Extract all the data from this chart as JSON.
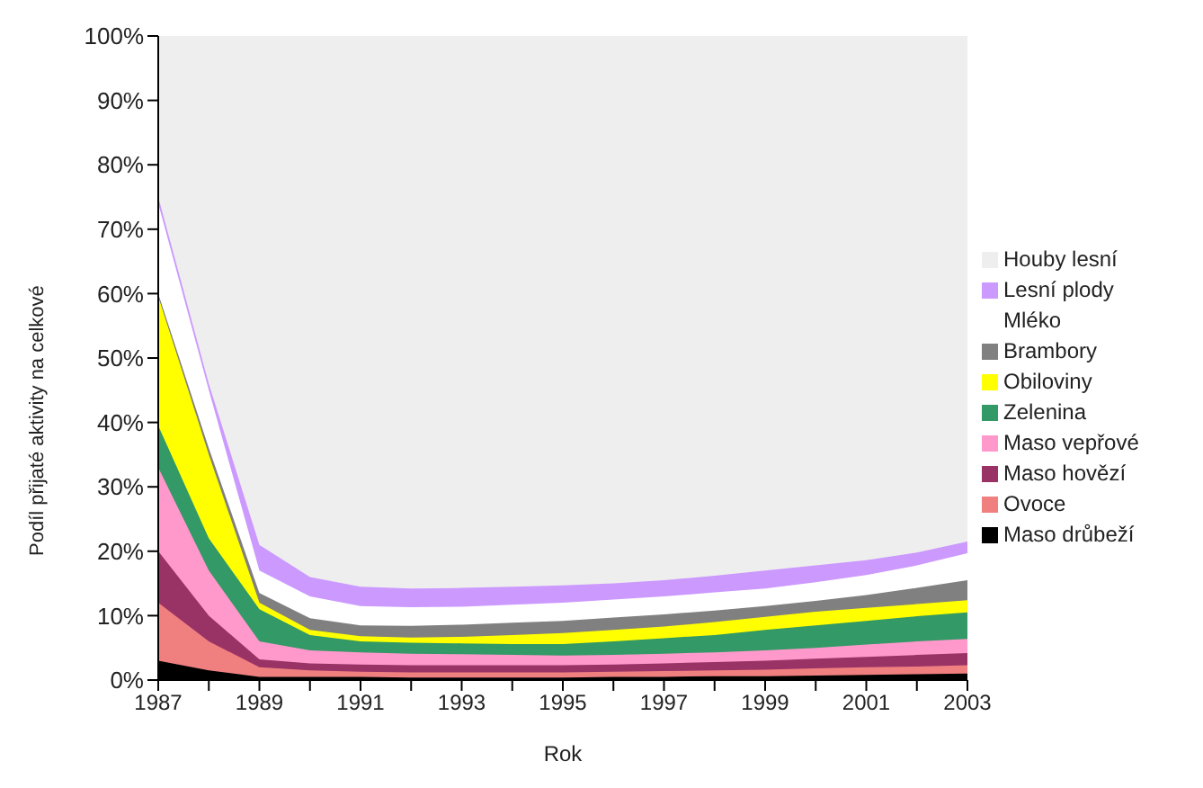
{
  "chart_data": {
    "type": "area",
    "stacked": true,
    "xlabel": "Rok",
    "ylabel": "Podíl přijaté aktivity na celkové",
    "x": [
      1987,
      1988,
      1989,
      1990,
      1991,
      1992,
      1993,
      1994,
      1995,
      1996,
      1997,
      1998,
      1999,
      2000,
      2001,
      2002,
      2003
    ],
    "xlim": [
      1987,
      2003
    ],
    "xticks": [
      1987,
      {
        "value": 1988,
        "label": null
      },
      1989,
      {
        "value": 1990,
        "label": null
      },
      1991,
      {
        "value": 1992,
        "label": null
      },
      1993,
      {
        "value": 1994,
        "label": null
      },
      1995,
      {
        "value": 1996,
        "label": null
      },
      1997,
      {
        "value": 1998,
        "label": null
      },
      1999,
      {
        "value": 2000,
        "label": null
      },
      2001,
      {
        "value": 2002,
        "label": null
      },
      2003
    ],
    "ylim": [
      0,
      100
    ],
    "yticks": [
      {
        "value": 0,
        "label": "0%"
      },
      {
        "value": 10,
        "label": "10%"
      },
      {
        "value": 20,
        "label": "20%"
      },
      {
        "value": 30,
        "label": "30%"
      },
      {
        "value": 40,
        "label": "40%"
      },
      {
        "value": 50,
        "label": "50%"
      },
      {
        "value": 60,
        "label": "60%"
      },
      {
        "value": 70,
        "label": "70%"
      },
      {
        "value": 80,
        "label": "80%"
      },
      {
        "value": 90,
        "label": "90%"
      },
      {
        "value": 100,
        "label": "100%"
      }
    ],
    "grid": false,
    "legend": "right",
    "series": [
      {
        "name": "Maso drůbeží",
        "color": "#000000",
        "values": [
          3,
          1.5,
          0.5,
          0.5,
          0.5,
          0.4,
          0.4,
          0.4,
          0.4,
          0.5,
          0.5,
          0.6,
          0.6,
          0.7,
          0.8,
          0.9,
          1
        ]
      },
      {
        "name": "Ovoce",
        "color": "#f08080",
        "values": [
          9,
          4.5,
          1.5,
          1,
          0.8,
          0.8,
          0.8,
          0.8,
          0.8,
          0.8,
          0.9,
          0.9,
          1,
          1.1,
          1.2,
          1.2,
          1.3
        ]
      },
      {
        "name": "Maso hovězí",
        "color": "#993366",
        "values": [
          8,
          4,
          1.2,
          1.1,
          1.1,
          1.1,
          1.1,
          1.1,
          1.1,
          1.1,
          1.2,
          1.3,
          1.4,
          1.5,
          1.6,
          1.8,
          1.9
        ]
      },
      {
        "name": "Maso vepřové",
        "color": "#ff99cc",
        "values": [
          13,
          7,
          2.8,
          2,
          1.9,
          1.8,
          1.7,
          1.6,
          1.5,
          1.5,
          1.5,
          1.5,
          1.6,
          1.7,
          1.9,
          2.1,
          2.2
        ]
      },
      {
        "name": "Zelenina",
        "color": "#339966",
        "values": [
          6.5,
          5,
          5,
          2.4,
          1.7,
          1.7,
          1.7,
          1.7,
          1.8,
          2.1,
          2.4,
          2.7,
          3.2,
          3.5,
          3.7,
          3.9,
          4.1
        ]
      },
      {
        "name": "Obiloviny",
        "color": "#ffff00",
        "values": [
          20.1,
          13,
          1,
          0.8,
          0.8,
          0.8,
          1,
          1.4,
          1.7,
          1.8,
          1.8,
          2,
          2,
          2.1,
          2,
          1.9,
          1.9
        ]
      },
      {
        "name": "Brambory",
        "color": "#808080",
        "values": [
          0.4,
          1,
          1.5,
          1.8,
          1.7,
          1.8,
          1.9,
          1.9,
          1.9,
          1.9,
          1.9,
          1.8,
          1.7,
          1.7,
          2,
          2.5,
          3.1
        ]
      },
      {
        "name": "Mléko",
        "color": "#ffffff",
        "values": [
          14,
          9,
          3.5,
          3.4,
          3,
          2.9,
          2.8,
          2.8,
          2.8,
          2.8,
          2.8,
          2.8,
          2.7,
          2.9,
          3.1,
          3.5,
          4.2
        ]
      },
      {
        "name": "Lesní plody",
        "color": "#cc99ff",
        "values": [
          1,
          1,
          4,
          3,
          3,
          2.9,
          2.9,
          2.8,
          2.7,
          2.5,
          2.5,
          2.6,
          2.8,
          2.6,
          2.3,
          2,
          1.8
        ]
      },
      {
        "name": "Houby lesní",
        "color": "#eeeeee",
        "values": [
          25,
          54,
          79,
          84,
          85.5,
          85.8,
          85.7,
          85.5,
          85.3,
          85,
          84.5,
          83.8,
          83,
          82.2,
          81.4,
          80.2,
          78.5
        ]
      }
    ]
  }
}
